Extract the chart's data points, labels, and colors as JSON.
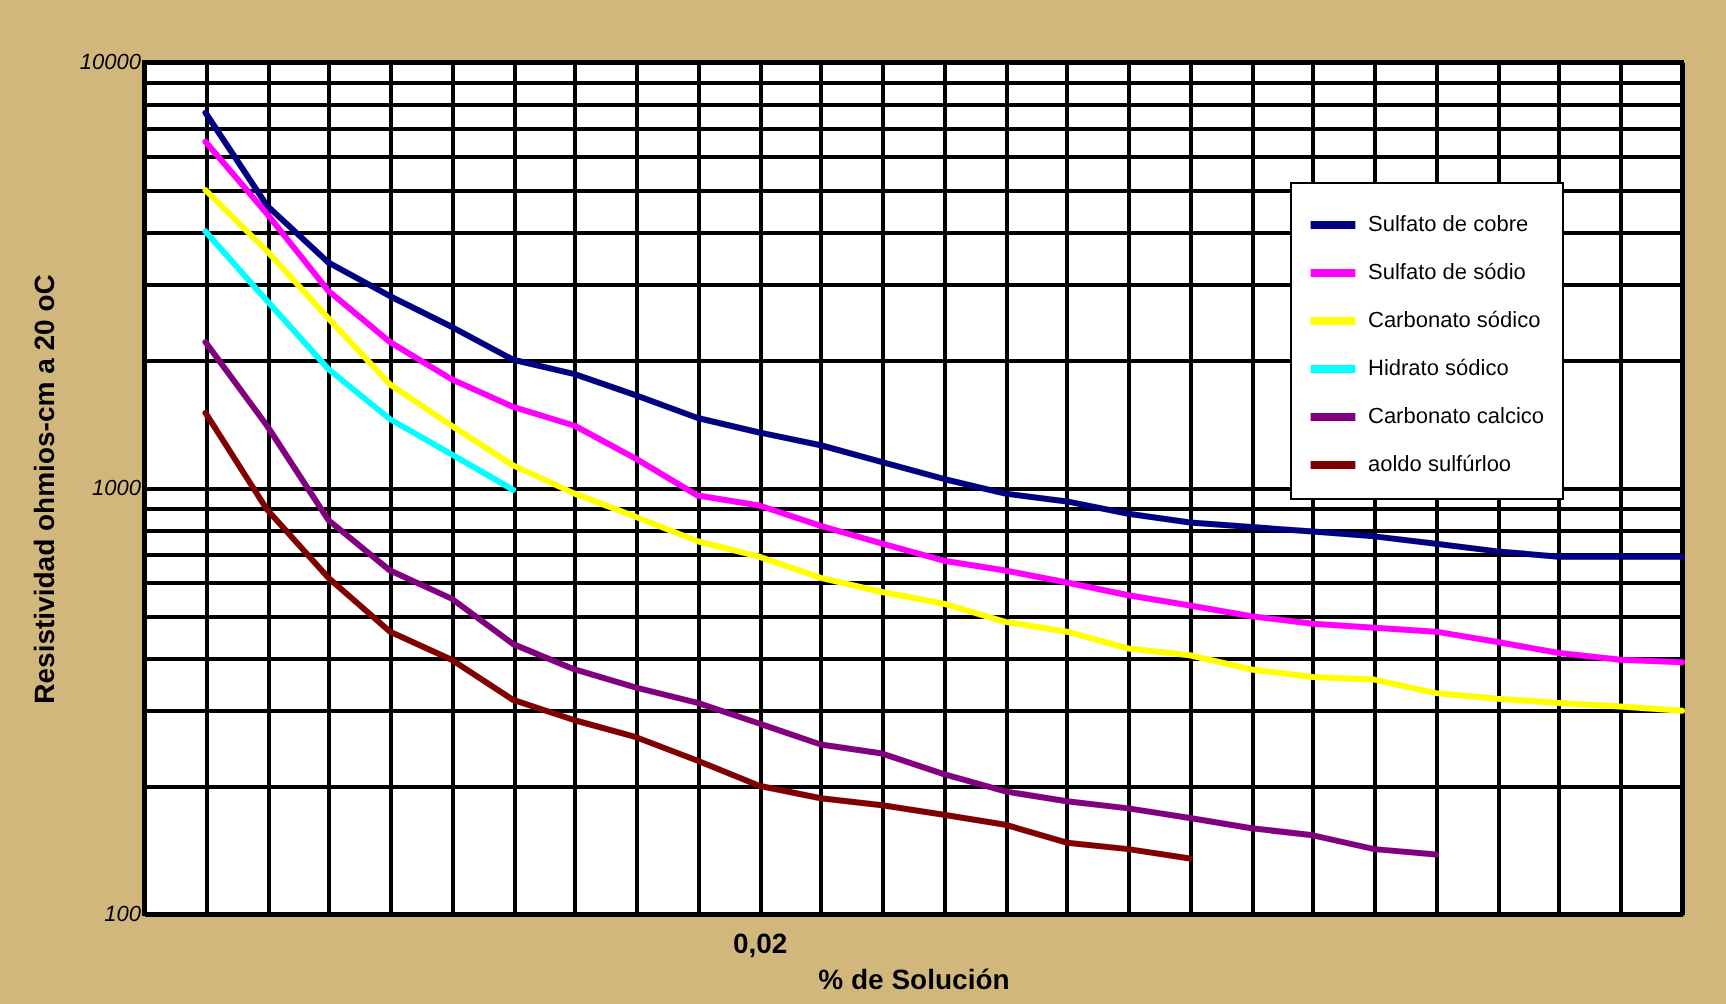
{
  "chart_data": {
    "type": "line",
    "xlabel": "% de Solución",
    "ylabel": "Resistividad ohmios-cm a 20 oC",
    "categories": [
      null,
      null,
      null,
      null,
      null,
      null,
      null,
      null,
      null,
      null,
      "0,02",
      null,
      null,
      null,
      null,
      null,
      null,
      null,
      null,
      null,
      null,
      null,
      null,
      null,
      null,
      null
    ],
    "series": [
      {
        "name": "Sulfato de cobre",
        "color": "#000080",
        "values": [
          null,
          7600,
          4600,
          3380,
          2820,
          2390,
          2000,
          1850,
          1650,
          1460,
          1350,
          1260,
          1150,
          1050,
          970,
          930,
          870,
          830,
          810,
          790,
          770,
          740,
          710,
          690,
          690,
          690
        ]
      },
      {
        "name": "Sulfato de sódio",
        "color": "#ff00ff",
        "values": [
          null,
          6500,
          4400,
          2900,
          2200,
          1800,
          1550,
          1400,
          1170,
          960,
          910,
          815,
          740,
          675,
          640,
          600,
          560,
          530,
          500,
          480,
          470,
          460,
          435,
          410,
          395,
          390
        ]
      },
      {
        "name": "Carbonato sódico",
        "color": "#ffff00",
        "values": [
          null,
          5000,
          3600,
          2500,
          1750,
          1400,
          1130,
          970,
          855,
          750,
          690,
          615,
          570,
          535,
          485,
          460,
          420,
          405,
          375,
          360,
          355,
          330,
          320,
          313,
          307,
          300
        ]
      },
      {
        "name": "Hidrato sódico",
        "color": "#00ffff",
        "values": [
          null,
          4000,
          2750,
          1900,
          1450,
          1200,
          990,
          null,
          null,
          null,
          null,
          null,
          null,
          null,
          null,
          null,
          null,
          null,
          null,
          null,
          null,
          null,
          null,
          null,
          null,
          null
        ]
      },
      {
        "name": "Carbonato calcico",
        "color": "#800080",
        "values": [
          null,
          2200,
          1400,
          840,
          640,
          550,
          430,
          375,
          340,
          313,
          280,
          250,
          238,
          213,
          194,
          184,
          177,
          168,
          159,
          153,
          142,
          138,
          null,
          null,
          null,
          null
        ]
      },
      {
        "name": "aoldo sulfúrloo",
        "color": "#800000",
        "values": [
          null,
          1500,
          890,
          615,
          460,
          395,
          318,
          285,
          260,
          229,
          200,
          187,
          180,
          171,
          162,
          147,
          142,
          135,
          null,
          null,
          null,
          null,
          null,
          null,
          null,
          null
        ]
      }
    ],
    "log": true,
    "ylim": [
      100,
      10000
    ],
    "yticks": [
      100,
      {
        "value": 200,
        "label": null
      },
      {
        "value": 300,
        "label": null
      },
      {
        "value": 400,
        "label": null
      },
      {
        "value": 500,
        "label": null
      },
      {
        "value": 600,
        "label": null
      },
      {
        "value": 700,
        "label": null
      },
      {
        "value": 800,
        "label": null
      },
      {
        "value": 900,
        "label": null
      },
      1000,
      {
        "value": 2000,
        "label": null
      },
      {
        "value": 3000,
        "label": null
      },
      {
        "value": 4000,
        "label": null
      },
      {
        "value": 5000,
        "label": null
      },
      {
        "value": 6000,
        "label": null
      },
      {
        "value": 7000,
        "label": null
      },
      {
        "value": 8000,
        "label": null
      },
      {
        "value": 9000,
        "label": null
      },
      10000
    ],
    "grid": true,
    "legend": "top right"
  }
}
